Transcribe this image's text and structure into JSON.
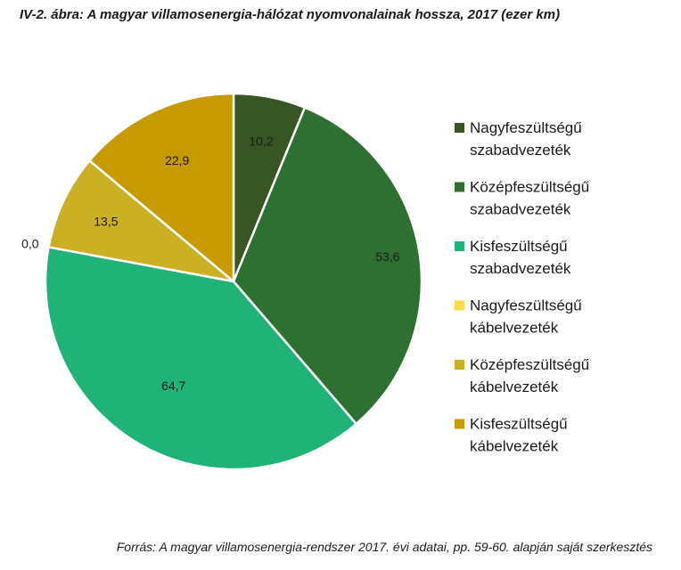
{
  "title": "IV-2. ábra: A magyar villamosenergia-hálózat nyomvonalainak hossza, 2017 (ezer km)",
  "source": "Forrás: A magyar villamosenergia-rendszer 2017. évi adatai, pp. 59-60. alapján saját szerkesztés",
  "chart_data": {
    "type": "pie",
    "title": "IV-2. ábra: A magyar villamosenergia-hálózat nyomvonalainak hossza, 2017 (ezer km)",
    "legend_position": "right",
    "slices": [
      {
        "label": "Nagyfeszültségű szabadvezeték",
        "legend_lines": [
          "Nagyfeszültségű",
          "szabadvezeték"
        ],
        "value": 10.2,
        "value_label": "10,2",
        "color": "#375623"
      },
      {
        "label": "Középfeszültségű szabadvezeték",
        "legend_lines": [
          "Középfeszültségű",
          "szabadvezeték"
        ],
        "value": 53.6,
        "value_label": "53,6",
        "color": "#2e7031"
      },
      {
        "label": "Kisfeszültségű szabadvezeték",
        "legend_lines": [
          "Kisfeszültségű",
          "szabadvezeték"
        ],
        "value": 64.7,
        "value_label": "64,7",
        "color": "#20b377"
      },
      {
        "label": "Nagyfeszültségű kábelvezeték",
        "legend_lines": [
          "Nagyfeszültségű",
          "kábelvezeték"
        ],
        "value": 0.0,
        "value_label": "0,0",
        "color": "#ffd84a"
      },
      {
        "label": "Középfeszültségű kábelvezeték",
        "legend_lines": [
          "Középfeszültségű",
          "kábelvezeték"
        ],
        "value": 13.5,
        "value_label": "13,5",
        "color": "#ccb024"
      },
      {
        "label": "Kisfeszültségű kábelvezeték",
        "legend_lines": [
          "Kisfeszültségű",
          "kábelvezeték"
        ],
        "value": 22.9,
        "value_label": "22,9",
        "color": "#c79a00"
      }
    ]
  }
}
